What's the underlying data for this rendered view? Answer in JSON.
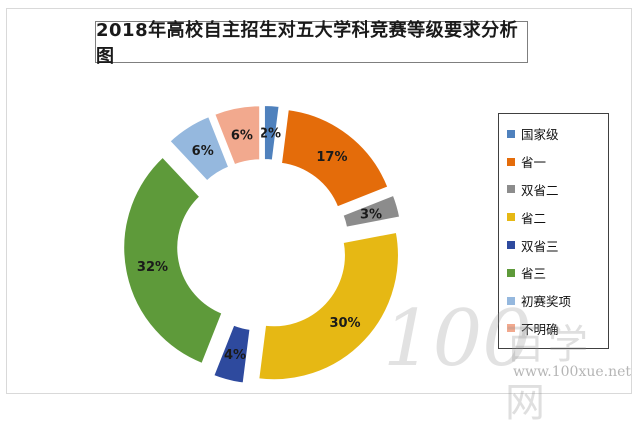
{
  "chart_data": {
    "type": "pie",
    "style": "exploded-donut",
    "title": "2018年高校自主招生对五大学科竞赛等级要求分析图",
    "slices": [
      {
        "name": "国家级",
        "value": 2,
        "label": "2%",
        "color": "#4f81bd"
      },
      {
        "name": "省一",
        "value": 17,
        "label": "17%",
        "color": "#e46c0a"
      },
      {
        "name": "双省二",
        "value": 3,
        "label": "3%",
        "color": "#8c8c8c"
      },
      {
        "name": "省二",
        "value": 30,
        "label": "30%",
        "color": "#e6b814"
      },
      {
        "name": "双省三",
        "value": 4,
        "label": "4%",
        "color": "#2e4a9e"
      },
      {
        "name": "省三",
        "value": 32,
        "label": "32%",
        "color": "#5e9a3a"
      },
      {
        "name": "初赛奖项",
        "value": 6,
        "label": "6%",
        "color": "#95b8de"
      },
      {
        "name": "不明确",
        "value": 6,
        "label": "6%",
        "color": "#f2a98e"
      }
    ],
    "legend_position": "right"
  },
  "watermark": {
    "number": "100",
    "chinese": "百学网",
    "url": "www.100xue.net"
  }
}
